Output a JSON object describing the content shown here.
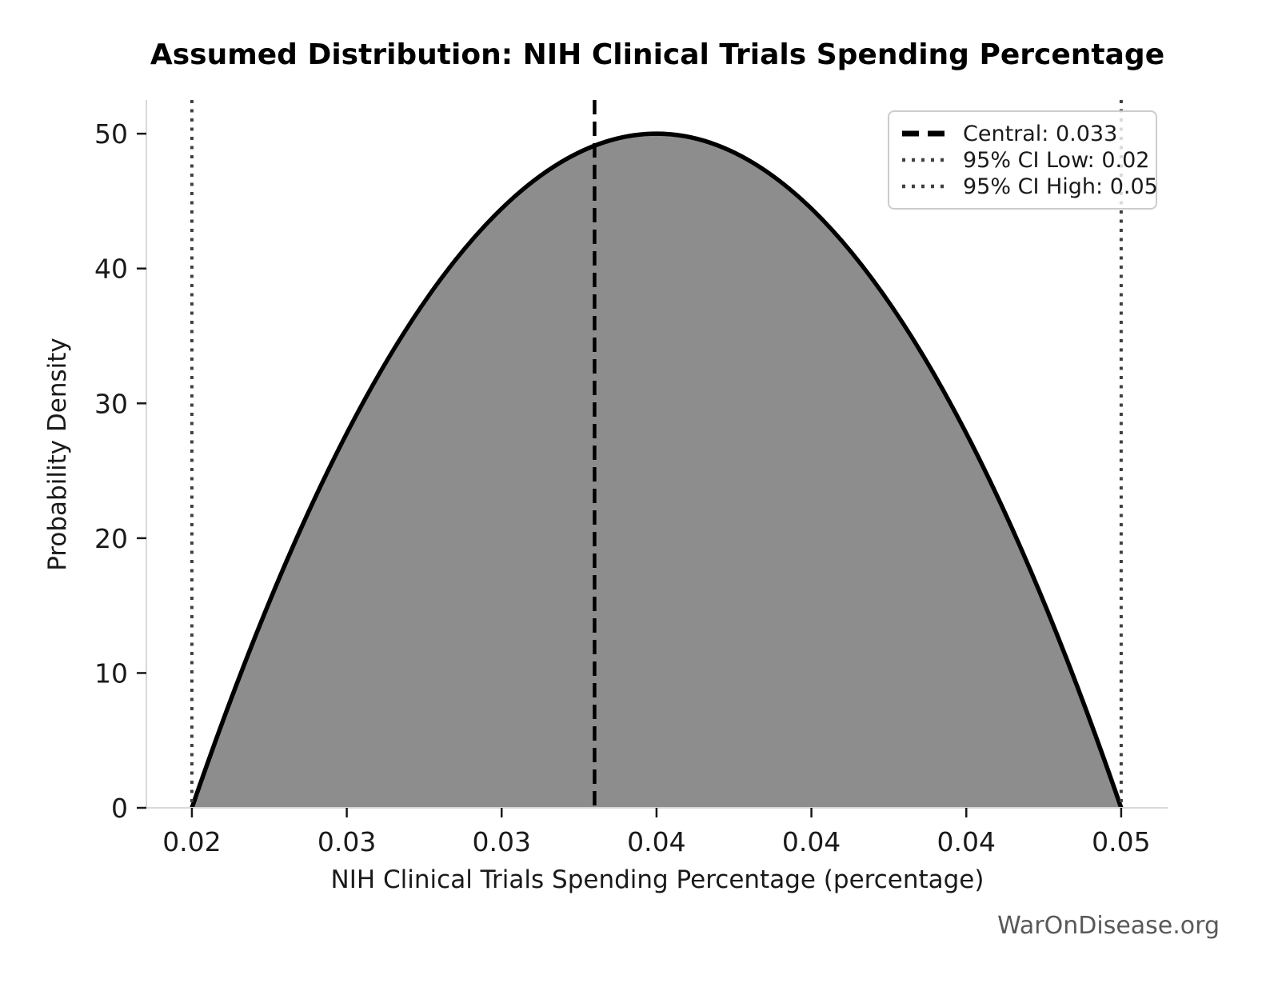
{
  "watermark": "WarOnDisease.org",
  "chart_data": {
    "type": "area",
    "title": "Assumed Distribution: NIH Clinical Trials Spending Percentage",
    "xlabel": "NIH Clinical Trials Spending Percentage (percentage)",
    "ylabel": "Probability Density",
    "grid": false,
    "legend_position": "upper right",
    "xlim": [
      0.01853,
      0.0515
    ],
    "ylim": [
      0,
      52.5
    ],
    "x_ticks": {
      "values": [
        0.02,
        0.025,
        0.03,
        0.035,
        0.04,
        0.045,
        0.05
      ],
      "labels": [
        "0.02",
        "0.03",
        "0.03",
        "0.04",
        "0.04",
        "0.04",
        "0.05"
      ]
    },
    "y_ticks": {
      "values": [
        0,
        10,
        20,
        30,
        40,
        50
      ],
      "labels": [
        "0",
        "10",
        "20",
        "30",
        "40",
        "50"
      ]
    },
    "distribution": {
      "shape": "scaled Beta(2,2) parabola",
      "min": 0.02,
      "max": 0.05,
      "mode": 0.035,
      "peak_density": 50
    },
    "central": 0.033,
    "ci_low": 0.02,
    "ci_high": 0.05,
    "series": [
      {
        "name": "probability-density",
        "x": [
          0.02,
          0.0225,
          0.025,
          0.0275,
          0.03,
          0.0325,
          0.035,
          0.0375,
          0.04,
          0.0425,
          0.045,
          0.0475,
          0.05
        ],
        "y": [
          0,
          15.3,
          27.8,
          37.5,
          44.4,
          48.6,
          50,
          48.6,
          44.4,
          37.5,
          27.8,
          15.3,
          0
        ]
      }
    ],
    "legend": [
      {
        "label": "Central: 0.033",
        "style": "dashed",
        "color": "#000000"
      },
      {
        "label": "95% CI Low: 0.02",
        "style": "dotted",
        "color": "#404040"
      },
      {
        "label": "95% CI High: 0.05",
        "style": "dotted",
        "color": "#404040"
      }
    ],
    "colors": {
      "fill": "#8d8d8d",
      "curve": "#000000",
      "central_line": "#000000",
      "ci_line": "#404040",
      "spine": "#d9d9d9",
      "tick": "#1a1a1a",
      "tick_label": "#1a1a1a",
      "watermark": "#595959"
    }
  }
}
